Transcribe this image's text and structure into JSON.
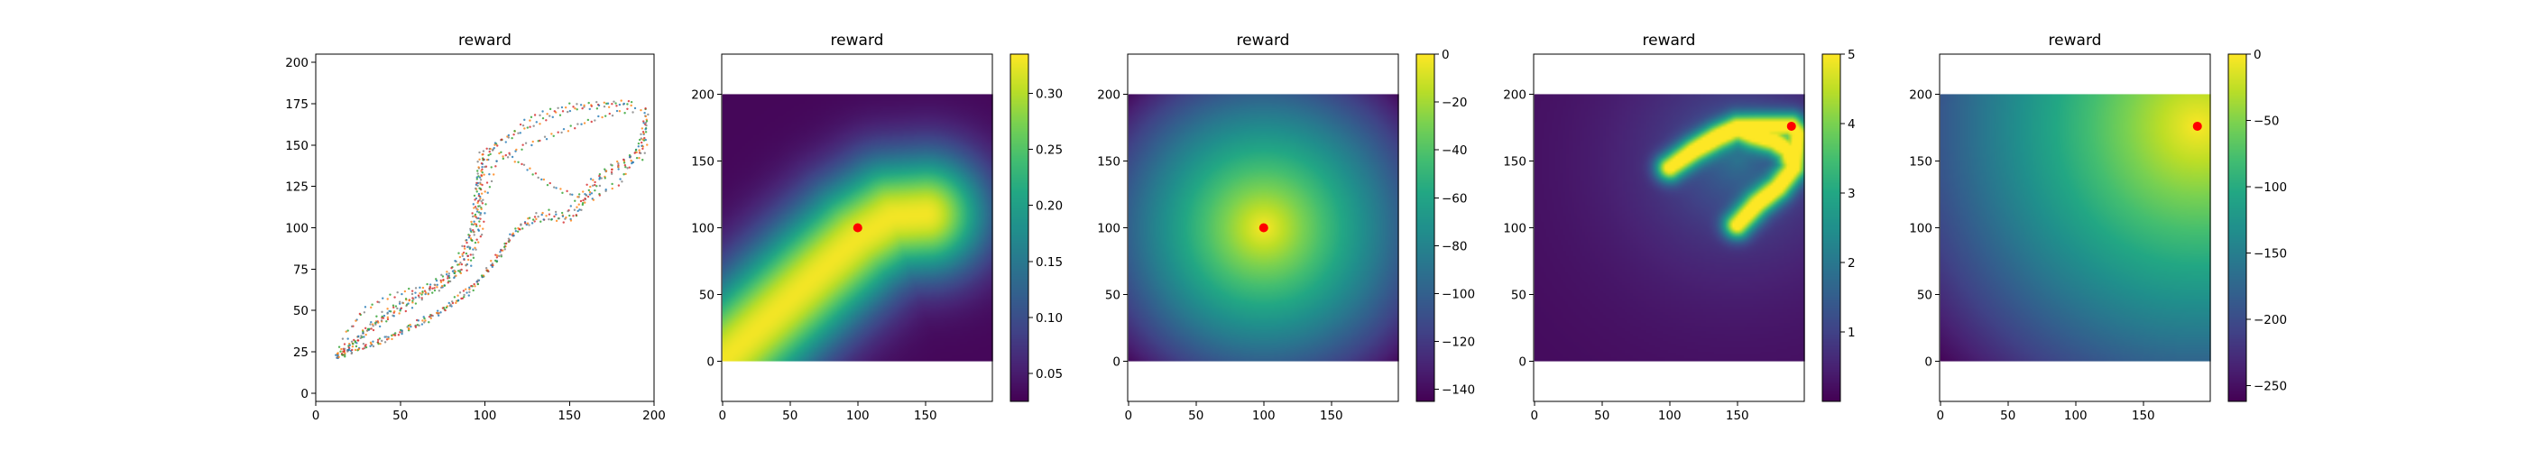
{
  "figure": {
    "background": "#ffffff"
  },
  "chart_data": [
    {
      "type": "scatter",
      "title": "reward",
      "xlabel": "",
      "ylabel": "",
      "xlim": [
        0,
        200
      ],
      "ylim": [
        -5,
        205
      ],
      "xticks": [
        "0",
        "50",
        "100",
        "150",
        "200"
      ],
      "yticks": [
        "0",
        "25",
        "50",
        "75",
        "100",
        "125",
        "150",
        "175",
        "200"
      ],
      "grid": false,
      "marker_colors": [
        "#1f77b4",
        "#ff7f0e",
        "#2ca02c",
        "#d62728",
        "#7f7f7f"
      ],
      "trajectories": [
        [
          [
            12,
            22
          ],
          [
            20,
            28
          ],
          [
            32,
            38
          ],
          [
            45,
            46
          ],
          [
            60,
            55
          ],
          [
            75,
            66
          ],
          [
            88,
            82
          ],
          [
            95,
            105
          ],
          [
            97,
            128
          ],
          [
            98,
            145
          ],
          [
            110,
            152
          ],
          [
            125,
            160
          ],
          [
            140,
            168
          ],
          [
            155,
            172
          ],
          [
            172,
            174
          ],
          [
            190,
            175
          ]
        ],
        [
          [
            12,
            22
          ],
          [
            22,
            30
          ],
          [
            35,
            42
          ],
          [
            50,
            52
          ],
          [
            65,
            62
          ],
          [
            80,
            75
          ],
          [
            92,
            95
          ],
          [
            96,
            120
          ],
          [
            97,
            140
          ],
          [
            105,
            150
          ],
          [
            115,
            156
          ],
          [
            122,
            163
          ],
          [
            130,
            168
          ],
          [
            150,
            174
          ],
          [
            188,
            176
          ]
        ],
        [
          [
            12,
            22
          ],
          [
            20,
            38
          ],
          [
            28,
            50
          ],
          [
            40,
            57
          ],
          [
            55,
            62
          ],
          [
            70,
            66
          ],
          [
            85,
            75
          ],
          [
            92,
            98
          ],
          [
            96,
            125
          ],
          [
            98,
            142
          ],
          [
            98,
            147
          ]
        ],
        [
          [
            12,
            22
          ],
          [
            30,
            28
          ],
          [
            50,
            36
          ],
          [
            70,
            46
          ],
          [
            90,
            60
          ],
          [
            105,
            78
          ],
          [
            115,
            95
          ],
          [
            125,
            105
          ],
          [
            135,
            110
          ],
          [
            145,
            108
          ],
          [
            152,
            112
          ],
          [
            158,
            120
          ],
          [
            165,
            130
          ],
          [
            178,
            138
          ],
          [
            190,
            146
          ],
          [
            195,
            160
          ],
          [
            195,
            175
          ]
        ],
        [
          [
            12,
            22
          ],
          [
            35,
            30
          ],
          [
            55,
            40
          ],
          [
            75,
            50
          ],
          [
            95,
            66
          ],
          [
            108,
            82
          ],
          [
            118,
            98
          ],
          [
            128,
            104
          ],
          [
            140,
            105
          ],
          [
            150,
            104
          ],
          [
            155,
            108
          ],
          [
            162,
            122
          ],
          [
            172,
            135
          ],
          [
            185,
            142
          ],
          [
            194,
            150
          ],
          [
            195,
            168
          ]
        ],
        [
          [
            14,
            24
          ],
          [
            40,
            32
          ],
          [
            60,
            42
          ],
          [
            80,
            54
          ],
          [
            98,
            70
          ],
          [
            110,
            86
          ],
          [
            120,
            100
          ],
          [
            132,
            106
          ],
          [
            146,
            106
          ],
          [
            152,
            108
          ],
          [
            160,
            118
          ],
          [
            170,
            130
          ],
          [
            180,
            136
          ],
          [
            192,
            142
          ],
          [
            196,
            155
          ]
        ],
        [
          [
            16,
            24
          ],
          [
            30,
            40
          ],
          [
            45,
            52
          ],
          [
            60,
            60
          ],
          [
            75,
            66
          ],
          [
            90,
            78
          ],
          [
            96,
            100
          ],
          [
            98,
            130
          ],
          [
            104,
            148
          ],
          [
            120,
            140
          ],
          [
            135,
            128
          ],
          [
            150,
            120
          ],
          [
            165,
            118
          ],
          [
            180,
            128
          ],
          [
            192,
            148
          ],
          [
            196,
            172
          ]
        ],
        [
          [
            14,
            22
          ],
          [
            28,
            35
          ],
          [
            42,
            48
          ],
          [
            58,
            57
          ],
          [
            74,
            64
          ],
          [
            90,
            76
          ],
          [
            97,
            96
          ],
          [
            100,
            118
          ],
          [
            106,
            140
          ],
          [
            125,
            150
          ],
          [
            145,
            158
          ],
          [
            165,
            166
          ],
          [
            180,
            170
          ],
          [
            194,
            172
          ]
        ]
      ]
    },
    {
      "type": "heatmap",
      "title": "reward",
      "field": "gaussian_band",
      "xlim": [
        -0.5,
        199.5
      ],
      "ylim": [
        -30,
        230
      ],
      "image_extent": [
        0,
        200
      ],
      "xticks": [
        "0",
        "50",
        "100",
        "150"
      ],
      "yticks": [
        "0",
        "50",
        "100",
        "150",
        "200"
      ],
      "colorbar_ticks": [
        "0.05",
        "0.10",
        "0.15",
        "0.20",
        "0.25",
        "0.30"
      ],
      "colorbar_values": [
        0.05,
        0.1,
        0.15,
        0.2,
        0.25,
        0.3
      ],
      "vmin": 0.025,
      "vmax": 0.335,
      "marker": {
        "x": 100,
        "y": 100,
        "color": "#ff0000"
      }
    },
    {
      "type": "heatmap",
      "title": "reward",
      "field": "negative_distance",
      "xlim": [
        -0.5,
        199.5
      ],
      "ylim": [
        -30,
        230
      ],
      "image_extent": [
        0,
        200
      ],
      "xticks": [
        "0",
        "50",
        "100",
        "150"
      ],
      "yticks": [
        "0",
        "50",
        "100",
        "150",
        "200"
      ],
      "colorbar_ticks": [
        "0",
        "−20",
        "−40",
        "−60",
        "−80",
        "−100",
        "−120",
        "−140"
      ],
      "colorbar_values": [
        0,
        -20,
        -40,
        -60,
        -80,
        -100,
        -120,
        -140
      ],
      "vmin": -145,
      "vmax": 0,
      "marker": {
        "x": 100,
        "y": 100,
        "color": "#ff0000"
      }
    },
    {
      "type": "heatmap",
      "title": "reward",
      "field": "trajectory_path",
      "xlim": [
        -0.5,
        199.5
      ],
      "ylim": [
        -30,
        230
      ],
      "image_extent": [
        0,
        200
      ],
      "xticks": [
        "0",
        "50",
        "100",
        "150"
      ],
      "yticks": [
        "0",
        "50",
        "100",
        "150",
        "200"
      ],
      "colorbar_ticks": [
        "5",
        "4",
        "3",
        "2",
        "1"
      ],
      "colorbar_values": [
        5,
        4,
        3,
        2,
        1
      ],
      "vmin": 0,
      "vmax": 5,
      "marker": {
        "x": 190,
        "y": 176,
        "color": "#ff0000"
      }
    },
    {
      "type": "heatmap",
      "title": "reward",
      "field": "negative_distance",
      "xlim": [
        -0.5,
        199.5
      ],
      "ylim": [
        -30,
        230
      ],
      "image_extent": [
        0,
        200
      ],
      "xticks": [
        "0",
        "50",
        "100",
        "150"
      ],
      "yticks": [
        "0",
        "50",
        "100",
        "150",
        "200"
      ],
      "colorbar_ticks": [
        "0",
        "−50",
        "−100",
        "−150",
        "−200",
        "−250"
      ],
      "colorbar_values": [
        0,
        -50,
        -100,
        -150,
        -200,
        -250
      ],
      "vmin": -262,
      "vmax": 0,
      "marker": {
        "x": 190,
        "y": 176,
        "color": "#ff0000"
      }
    }
  ]
}
